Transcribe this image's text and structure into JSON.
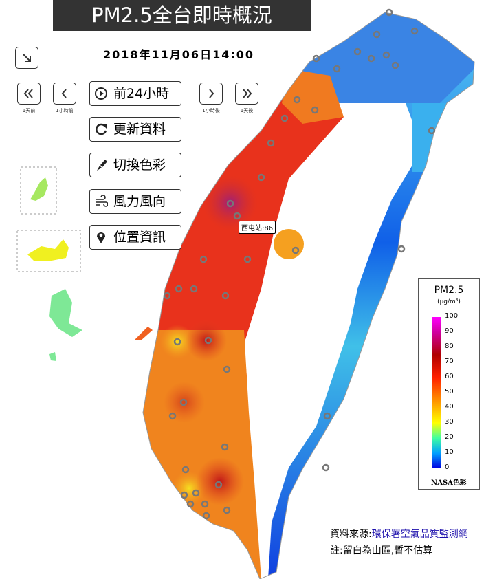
{
  "header": {
    "title": "PM2.5全台即時概況",
    "datetime": "2018年11月06日14:00"
  },
  "nav": {
    "prev_day": "1天前",
    "prev_hour": "1小時前",
    "next_hour": "1小時後",
    "next_day": "1天後"
  },
  "buttons": [
    "前24小時",
    "更新資料",
    "切換色彩",
    "風力風向",
    "位置資訊"
  ],
  "station_label": "西屯站:86",
  "legend": {
    "title": "PM2.5",
    "unit": "(μg/m³)",
    "ticks": [
      0,
      10,
      20,
      30,
      40,
      50,
      60,
      70,
      80,
      90,
      100
    ],
    "scheme": "NASA色彩"
  },
  "footer": {
    "source_label": "資料來源:",
    "source_link": "環保署空氣品質監測網",
    "note": "註:留白為山區,暫不估算"
  }
}
